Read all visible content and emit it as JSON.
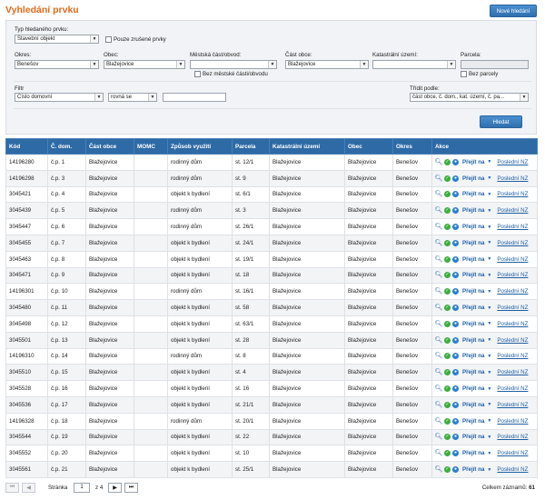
{
  "header": {
    "title": "Vyhledání prvku",
    "new_search": "Nové hledání"
  },
  "filters": {
    "type_label": "Typ hledaného prvku:",
    "type_value": "Stavební objekt",
    "only_cancelled": "Pouze zrušené prvky",
    "okres_label": "Okres:",
    "okres_value": "Benešov",
    "obec_label": "Obec:",
    "obec_value": "Blažejovice",
    "mestska_label": "Městská část/obvod:",
    "mestska_value": "",
    "bez_mestske": "Bez městské části/obvodu",
    "cast_obce_label": "Část obce:",
    "cast_obce_value": "Blažejovice",
    "katastr_label": "Katastrální území:",
    "katastr_value": "",
    "parcela_label": "Parcela:",
    "parcela_value": "",
    "bez_parcely": "Bez parcely",
    "filtr_label": "Filtr",
    "filtr_field": "Číslo domovní",
    "filtr_op": "rovná se",
    "filtr_value": "",
    "sort_label": "Třídit podle:",
    "sort_value": "část obce, č. dom., kat. území, č. pa...",
    "search_button": "Hledat"
  },
  "table": {
    "columns": [
      "Kód",
      "Č. dom.",
      "Část obce",
      "MOMC",
      "Způsob využití",
      "Parcela",
      "Katastrální území",
      "Obec",
      "Okres",
      "Akce"
    ],
    "action_go": "Přejít na",
    "action_last": "Poslední NZ",
    "rows": [
      [
        "14196280",
        "č.p. 1",
        "Blažejovice",
        "",
        "rodinný dům",
        "st. 12/1",
        "Blažejovice",
        "Blažejovice",
        "Benešov"
      ],
      [
        "14196298",
        "č.p. 3",
        "Blažejovice",
        "",
        "rodinný dům",
        "st. 9",
        "Blažejovice",
        "Blažejovice",
        "Benešov"
      ],
      [
        "3045421",
        "č.p. 4",
        "Blažejovice",
        "",
        "objekt k bydlení",
        "st. 6/1",
        "Blažejovice",
        "Blažejovice",
        "Benešov"
      ],
      [
        "3045439",
        "č.p. 5",
        "Blažejovice",
        "",
        "rodinný dům",
        "st. 3",
        "Blažejovice",
        "Blažejovice",
        "Benešov"
      ],
      [
        "3045447",
        "č.p. 6",
        "Blažejovice",
        "",
        "rodinný dům",
        "st. 26/1",
        "Blažejovice",
        "Blažejovice",
        "Benešov"
      ],
      [
        "3045455",
        "č.p. 7",
        "Blažejovice",
        "",
        "objekt k bydlení",
        "st. 24/1",
        "Blažejovice",
        "Blažejovice",
        "Benešov"
      ],
      [
        "3045463",
        "č.p. 8",
        "Blažejovice",
        "",
        "objekt k bydlení",
        "st. 19/1",
        "Blažejovice",
        "Blažejovice",
        "Benešov"
      ],
      [
        "3045471",
        "č.p. 9",
        "Blažejovice",
        "",
        "objekt k bydlení",
        "st. 18",
        "Blažejovice",
        "Blažejovice",
        "Benešov"
      ],
      [
        "14196301",
        "č.p. 10",
        "Blažejovice",
        "",
        "rodinný dům",
        "st. 16/1",
        "Blažejovice",
        "Blažejovice",
        "Benešov"
      ],
      [
        "3045480",
        "č.p. 11",
        "Blažejovice",
        "",
        "objekt k bydlení",
        "st. 58",
        "Blažejovice",
        "Blažejovice",
        "Benešov"
      ],
      [
        "3045498",
        "č.p. 12",
        "Blažejovice",
        "",
        "objekt k bydlení",
        "st. 63/1",
        "Blažejovice",
        "Blažejovice",
        "Benešov"
      ],
      [
        "3045501",
        "č.p. 13",
        "Blažejovice",
        "",
        "objekt k bydlení",
        "st. 28",
        "Blažejovice",
        "Blažejovice",
        "Benešov"
      ],
      [
        "14196310",
        "č.p. 14",
        "Blažejovice",
        "",
        "rodinný dům",
        "st. 8",
        "Blažejovice",
        "Blažejovice",
        "Benešov"
      ],
      [
        "3045510",
        "č.p. 15",
        "Blažejovice",
        "",
        "objekt k bydlení",
        "st. 4",
        "Blažejovice",
        "Blažejovice",
        "Benešov"
      ],
      [
        "3045528",
        "č.p. 16",
        "Blažejovice",
        "",
        "objekt k bydlení",
        "st. 16",
        "Blažejovice",
        "Blažejovice",
        "Benešov"
      ],
      [
        "3045536",
        "č.p. 17",
        "Blažejovice",
        "",
        "objekt k bydlení",
        "st. 21/1",
        "Blažejovice",
        "Blažejovice",
        "Benešov"
      ],
      [
        "14196328",
        "č.p. 18",
        "Blažejovice",
        "",
        "rodinný dům",
        "st. 20/1",
        "Blažejovice",
        "Blažejovice",
        "Benešov"
      ],
      [
        "3045544",
        "č.p. 19",
        "Blažejovice",
        "",
        "objekt k bydlení",
        "st. 22",
        "Blažejovice",
        "Blažejovice",
        "Benešov"
      ],
      [
        "3045552",
        "č.p. 20",
        "Blažejovice",
        "",
        "objekt k bydlení",
        "st. 10",
        "Blažejovice",
        "Blažejovice",
        "Benešov"
      ],
      [
        "3045561",
        "č.p. 21",
        "Blažejovice",
        "",
        "objekt k bydlení",
        "st. 25/1",
        "Blažejovice",
        "Blažejovice",
        "Benešov"
      ]
    ]
  },
  "pager": {
    "page_label": "Stránka",
    "page_value": "1",
    "of_label": "z 4",
    "total_label": "Celkem záznamů:",
    "total_value": "61"
  }
}
